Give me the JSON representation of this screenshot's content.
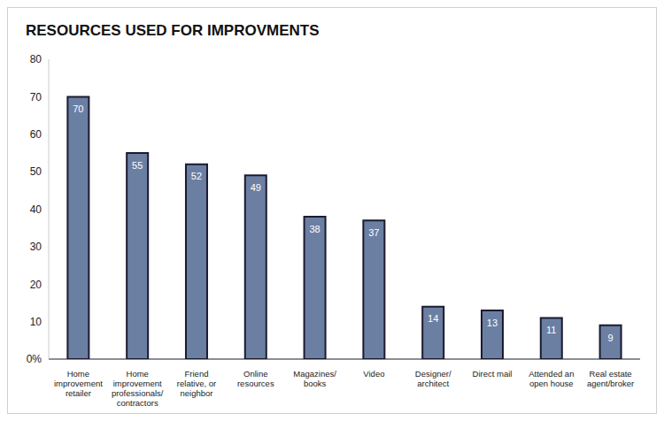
{
  "chart_data": {
    "type": "bar",
    "title": "RESOURCES USED FOR IMPROVMENTS",
    "categories": [
      "Home improvement retailer",
      "Home improvement professionals/ contractors",
      "Friend relative, or neighbor",
      "Online resources",
      "Magazines/ books",
      "Video",
      "Designer/ architect",
      "Direct mail",
      "Attended an open house",
      "Real estate agent/broker"
    ],
    "values": [
      70,
      55,
      52,
      49,
      38,
      37,
      14,
      13,
      11,
      9
    ],
    "color": "#6b7fa3",
    "ylim": [
      0,
      80
    ],
    "yticks": [
      {
        "value": 0,
        "label": "0%"
      },
      10,
      20,
      30,
      40,
      50,
      60,
      70,
      80
    ],
    "grid": false,
    "data_labels": true
  }
}
